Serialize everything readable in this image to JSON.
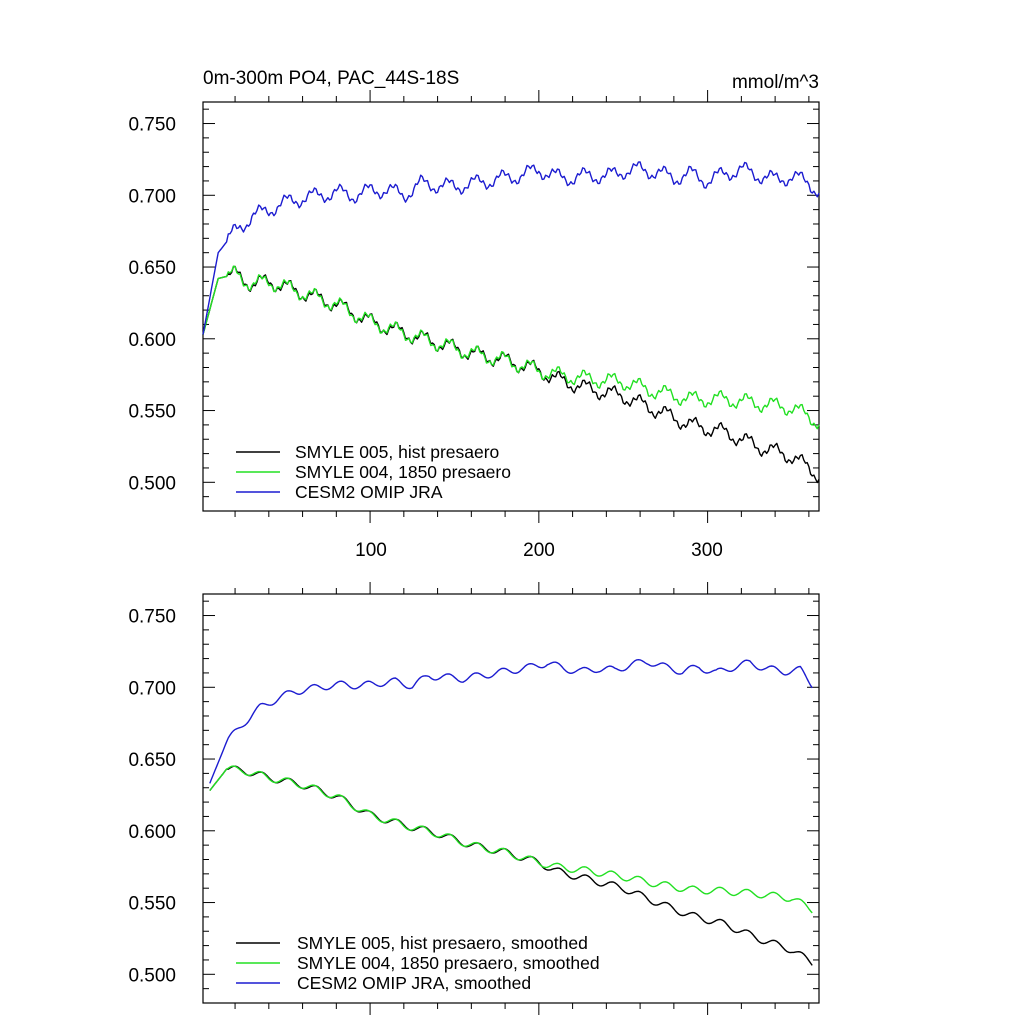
{
  "chart_data": [
    {
      "type": "line",
      "title": "0m-300m PO4, PAC_44S-18S",
      "units": "mmol/m^3",
      "xlim": [
        1,
        366
      ],
      "ylim": [
        0.48,
        0.765
      ],
      "x_ticks": [
        100,
        200,
        300
      ],
      "y_ticks": [
        0.75,
        0.7,
        0.65,
        0.6,
        0.55,
        0.5
      ],
      "y_tick_labels": [
        "0.750",
        "0.700",
        "0.650",
        "0.600",
        "0.550",
        "0.500"
      ],
      "legend_position": "bottom-left",
      "series": [
        {
          "name": "SMYLE 005, hist presaero",
          "color": "#000000",
          "x": [
            1,
            10,
            20,
            30,
            40,
            60,
            80,
            100,
            120,
            140,
            160,
            180,
            200,
            210,
            230,
            250,
            270,
            290,
            310,
            330,
            350,
            366
          ],
          "y": [
            0.603,
            0.642,
            0.645,
            0.638,
            0.64,
            0.632,
            0.624,
            0.612,
            0.604,
            0.597,
            0.59,
            0.585,
            0.578,
            0.572,
            0.565,
            0.56,
            0.55,
            0.54,
            0.535,
            0.525,
            0.518,
            0.505
          ]
        },
        {
          "name": "SMYLE 004, 1850 presaero",
          "color": "#22e022",
          "x": [
            1,
            10,
            20,
            30,
            40,
            60,
            80,
            100,
            120,
            140,
            160,
            180,
            200,
            210,
            230,
            250,
            270,
            290,
            310,
            330,
            350,
            366
          ],
          "y": [
            0.603,
            0.642,
            0.645,
            0.638,
            0.64,
            0.632,
            0.624,
            0.612,
            0.604,
            0.597,
            0.59,
            0.585,
            0.578,
            0.575,
            0.572,
            0.57,
            0.563,
            0.558,
            0.558,
            0.555,
            0.552,
            0.542
          ]
        },
        {
          "name": "CESM2 OMIP JRA",
          "color": "#1c1cd0",
          "x": [
            1,
            10,
            20,
            30,
            40,
            50,
            60,
            70,
            80,
            90,
            100,
            110,
            120,
            130,
            140,
            150,
            160,
            170,
            180,
            190,
            200,
            210,
            220,
            230,
            240,
            250,
            260,
            270,
            280,
            290,
            300,
            310,
            320,
            330,
            340,
            350,
            360,
            366
          ],
          "y": [
            0.603,
            0.66,
            0.675,
            0.685,
            0.69,
            0.695,
            0.698,
            0.7,
            0.702,
            0.7,
            0.703,
            0.704,
            0.7,
            0.708,
            0.707,
            0.706,
            0.708,
            0.71,
            0.712,
            0.714,
            0.718,
            0.713,
            0.712,
            0.714,
            0.713,
            0.717,
            0.718,
            0.716,
            0.712,
            0.715,
            0.71,
            0.715,
            0.718,
            0.714,
            0.711,
            0.713,
            0.709,
            0.702
          ]
        }
      ]
    },
    {
      "type": "line",
      "xlim": [
        1,
        366
      ],
      "ylim": [
        0.48,
        0.765
      ],
      "y_ticks": [
        0.75,
        0.7,
        0.65,
        0.6,
        0.55,
        0.5
      ],
      "y_tick_labels": [
        "0.750",
        "0.700",
        "0.650",
        "0.600",
        "0.550",
        "0.500"
      ],
      "legend_position": "bottom-left",
      "series": [
        {
          "name": "SMYLE 005, hist presaero, smoothed",
          "color": "#000000",
          "x": [
            5,
            15,
            25,
            40,
            60,
            80,
            100,
            120,
            140,
            160,
            180,
            200,
            210,
            230,
            250,
            270,
            290,
            310,
            330,
            350,
            362
          ],
          "y": [
            0.628,
            0.643,
            0.642,
            0.637,
            0.632,
            0.624,
            0.611,
            0.604,
            0.598,
            0.59,
            0.585,
            0.578,
            0.572,
            0.566,
            0.56,
            0.55,
            0.541,
            0.535,
            0.525,
            0.517,
            0.508
          ]
        },
        {
          "name": "SMYLE 004, 1850 presaero, smoothed",
          "color": "#22e022",
          "x": [
            5,
            15,
            25,
            40,
            60,
            80,
            100,
            120,
            140,
            160,
            180,
            200,
            210,
            230,
            250,
            270,
            290,
            310,
            330,
            350,
            362
          ],
          "y": [
            0.628,
            0.643,
            0.642,
            0.637,
            0.632,
            0.624,
            0.611,
            0.604,
            0.598,
            0.59,
            0.585,
            0.578,
            0.575,
            0.572,
            0.568,
            0.563,
            0.559,
            0.558,
            0.556,
            0.553,
            0.545
          ]
        },
        {
          "name": "CESM2 OMIP JRA, smoothed",
          "color": "#1c1cd0",
          "x": [
            5,
            15,
            25,
            35,
            45,
            55,
            65,
            75,
            85,
            95,
            105,
            115,
            125,
            135,
            145,
            155,
            165,
            175,
            185,
            195,
            205,
            215,
            225,
            235,
            245,
            255,
            265,
            275,
            285,
            295,
            305,
            315,
            325,
            335,
            345,
            355,
            362
          ],
          "y": [
            0.633,
            0.662,
            0.675,
            0.686,
            0.692,
            0.697,
            0.699,
            0.701,
            0.702,
            0.701,
            0.703,
            0.704,
            0.701,
            0.708,
            0.707,
            0.706,
            0.708,
            0.71,
            0.712,
            0.714,
            0.717,
            0.713,
            0.711,
            0.713,
            0.712,
            0.716,
            0.718,
            0.714,
            0.711,
            0.714,
            0.71,
            0.714,
            0.717,
            0.713,
            0.711,
            0.712,
            0.702
          ]
        }
      ]
    }
  ]
}
